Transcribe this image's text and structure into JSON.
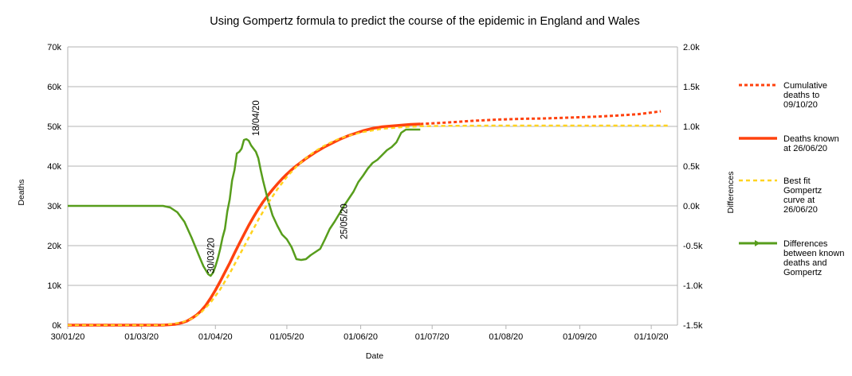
{
  "chart_data": {
    "type": "line",
    "title": "Using Gompertz formula to predict the course of the epidemic in England and Wales",
    "xlabel": "Date",
    "ylabel": "Deaths",
    "y2label": "Differences",
    "x_ticks": [
      "30/01/20",
      "01/03/20",
      "01/04/20",
      "01/05/20",
      "01/06/20",
      "01/07/20",
      "01/08/20",
      "01/09/20",
      "01/10/20"
    ],
    "x_tick_days": [
      0,
      31,
      62,
      92,
      123,
      153,
      184,
      215,
      245
    ],
    "xlim_days": [
      0,
      256
    ],
    "y_ticks": [
      "0k",
      "10k",
      "20k",
      "30k",
      "40k",
      "50k",
      "60k",
      "70k"
    ],
    "ylim": [
      0,
      70000
    ],
    "y2_ticks": [
      "-1.5k",
      "-1.0k",
      "-0.5k",
      "0.0k",
      "0.5k",
      "1.0k",
      "1.5k",
      "2.0k"
    ],
    "y2lim": [
      -1500,
      2000
    ],
    "grid": "horizontal",
    "legend": "right",
    "series": [
      {
        "name": "Cumulative deaths to 09/10/20",
        "axis": "left",
        "color": "#ff420e",
        "style": "dotted",
        "x_days": [
          148,
          160,
          170,
          180,
          190,
          200,
          210,
          220,
          230,
          240,
          249
        ],
        "values": [
          50600,
          51000,
          51400,
          51700,
          51900,
          52000,
          52200,
          52400,
          52700,
          53100,
          53800
        ]
      },
      {
        "name": "Deaths known at 26/06/20",
        "axis": "left",
        "color": "#ff420e",
        "style": "solid",
        "x_days": [
          0,
          40,
          45,
          48,
          50,
          52,
          54,
          56,
          58,
          60,
          62,
          64,
          66,
          68,
          70,
          72,
          74,
          76,
          78,
          80,
          82,
          84,
          86,
          88,
          90,
          92,
          94,
          96,
          98,
          100,
          102,
          104,
          106,
          108,
          110,
          112,
          114,
          116,
          118,
          120,
          122,
          124,
          126,
          128,
          130,
          132,
          134,
          136,
          138,
          140,
          142,
          144,
          146,
          148
        ],
        "values": [
          0,
          0,
          200,
          600,
          1000,
          1700,
          2500,
          3600,
          5000,
          6800,
          8800,
          11000,
          13300,
          15600,
          18100,
          20500,
          22800,
          25100,
          27200,
          29200,
          31000,
          32600,
          34100,
          35500,
          36800,
          38000,
          39100,
          40100,
          41000,
          41900,
          42700,
          43500,
          44200,
          44900,
          45500,
          46100,
          46700,
          47200,
          47700,
          48100,
          48500,
          48900,
          49200,
          49500,
          49700,
          49900,
          50000,
          50100,
          50200,
          50300,
          50400,
          50500,
          50550,
          50600
        ]
      },
      {
        "name": "Best fit Gompertz curve at 26/06/20",
        "axis": "left",
        "color": "#ffd320",
        "style": "dashed",
        "x_days": [
          0,
          40,
          44,
          48,
          52,
          56,
          60,
          64,
          68,
          72,
          76,
          80,
          84,
          88,
          92,
          96,
          100,
          104,
          108,
          112,
          116,
          120,
          124,
          128,
          132,
          136,
          140,
          144,
          148,
          160,
          180,
          200,
          220,
          240,
          252
        ],
        "values": [
          0,
          0,
          300,
          700,
          1600,
          3200,
          5700,
          9000,
          13000,
          17500,
          22000,
          26500,
          30600,
          34200,
          37300,
          39900,
          42000,
          43800,
          45200,
          46400,
          47300,
          48000,
          48600,
          49000,
          49400,
          49600,
          49800,
          49950,
          50050,
          50150,
          50200,
          50200,
          50200,
          50200,
          50200
        ]
      },
      {
        "name": "Differences between known deaths and Gompertz",
        "axis": "right",
        "color": "#579d1c",
        "style": "solid",
        "x_days": [
          0,
          40,
          43,
          46,
          49,
          52,
          55,
          57,
          59,
          60,
          61,
          62,
          63,
          64,
          65,
          66,
          67,
          68,
          69,
          70,
          71,
          72,
          73,
          74,
          75,
          76,
          77,
          78,
          79,
          80,
          81,
          82,
          84,
          86,
          88,
          90,
          92,
          94,
          96,
          98,
          100,
          102,
          104,
          106,
          108,
          110,
          112,
          114,
          116,
          118,
          120,
          122,
          124,
          126,
          128,
          130,
          132,
          134,
          136,
          138,
          140,
          142,
          144,
          146,
          148
        ],
        "values": [
          0,
          0,
          -20,
          -80,
          -200,
          -400,
          -620,
          -760,
          -860,
          -880,
          -840,
          -760,
          -660,
          -540,
          -400,
          -290,
          -70,
          80,
          320,
          450,
          660,
          680,
          720,
          830,
          840,
          820,
          760,
          720,
          680,
          600,
          450,
          320,
          80,
          -120,
          -250,
          -360,
          -420,
          -520,
          -670,
          -680,
          -670,
          -620,
          -580,
          -540,
          -420,
          -290,
          -200,
          -100,
          0,
          90,
          180,
          300,
          380,
          470,
          540,
          580,
          640,
          700,
          740,
          800,
          920,
          960,
          960,
          960,
          960
        ]
      }
    ],
    "annotations": [
      {
        "label": "30/03/20",
        "x_day": 60,
        "axis": "right",
        "y": -880
      },
      {
        "label": "18/04/20",
        "x_day": 79,
        "axis": "right",
        "y": 850
      },
      {
        "label": "25/05/20",
        "x_day": 116,
        "axis": "right",
        "y": -450
      }
    ]
  }
}
